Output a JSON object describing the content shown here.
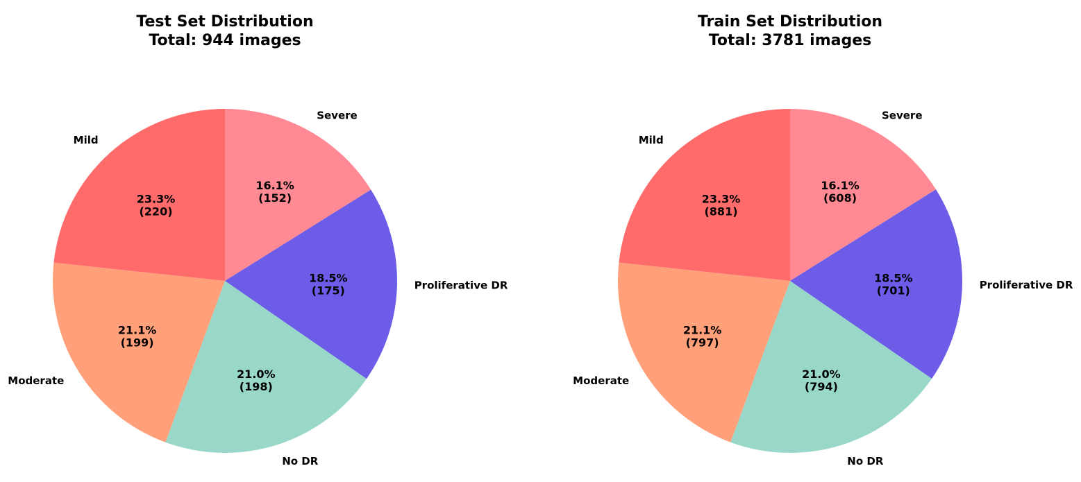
{
  "chart_data": [
    {
      "type": "pie",
      "title": "Test Set Distribution",
      "subtitle": "Total: 944 images",
      "categories": [
        "Severe",
        "Proliferative DR",
        "No DR",
        "Moderate",
        "Mild"
      ],
      "values": [
        152,
        175,
        198,
        199,
        220
      ],
      "percent_labels": [
        "16.1%",
        "18.5%",
        "21.0%",
        "21.1%",
        "23.3%"
      ],
      "count_labels": [
        "(152)",
        "(175)",
        "(198)",
        "(199)",
        "(220)"
      ],
      "colors": [
        "#FF8A93",
        "#6C5CE7",
        "#99D8C9",
        "#FFA07A",
        "#FF6B6B"
      ],
      "start_angle_deg": 90,
      "direction": "clockwise"
    },
    {
      "type": "pie",
      "title": "Train Set Distribution",
      "subtitle": "Total: 3781 images",
      "categories": [
        "Severe",
        "Proliferative DR",
        "No DR",
        "Moderate",
        "Mild"
      ],
      "values": [
        608,
        701,
        794,
        797,
        881
      ],
      "percent_labels": [
        "16.1%",
        "18.5%",
        "21.0%",
        "21.1%",
        "23.3%"
      ],
      "count_labels": [
        "(608)",
        "(701)",
        "(794)",
        "(797)",
        "(881)"
      ],
      "colors": [
        "#FF8A93",
        "#6C5CE7",
        "#99D8C9",
        "#FFA07A",
        "#FF6B6B"
      ],
      "start_angle_deg": 90,
      "direction": "clockwise"
    }
  ]
}
